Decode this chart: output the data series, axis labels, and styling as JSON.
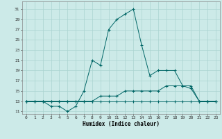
{
  "title": "",
  "xlabel": "Humidex (Indice chaleur)",
  "bg_color": "#cceae8",
  "grid_color": "#aad4d0",
  "line_color": "#006666",
  "xlim": [
    -0.5,
    23.5
  ],
  "ylim": [
    10.5,
    32.5
  ],
  "yticks": [
    11,
    13,
    15,
    17,
    19,
    21,
    23,
    25,
    27,
    29,
    31
  ],
  "xticks": [
    0,
    1,
    2,
    3,
    4,
    5,
    6,
    7,
    8,
    9,
    10,
    11,
    12,
    13,
    14,
    15,
    16,
    17,
    18,
    19,
    20,
    21,
    22,
    23
  ],
  "series": [
    {
      "x": [
        0,
        1,
        2,
        3,
        4,
        5,
        6,
        7,
        8,
        9,
        10,
        11,
        12,
        13,
        14,
        15,
        16,
        17,
        18,
        19,
        20,
        21,
        22,
        23
      ],
      "y": [
        13,
        13,
        13,
        13,
        13,
        13,
        13,
        13,
        13,
        13,
        13,
        13,
        13,
        13,
        13,
        13,
        13,
        13,
        13,
        13,
        13,
        13,
        13,
        13
      ],
      "linestyle": "-"
    },
    {
      "x": [
        0,
        1,
        2,
        3,
        4,
        5,
        6,
        7,
        8,
        9,
        10,
        11,
        12,
        13,
        14,
        15,
        16,
        17,
        18,
        19,
        20,
        21,
        22,
        23
      ],
      "y": [
        13,
        13,
        13,
        13,
        13,
        13,
        13,
        13,
        13,
        14,
        14,
        14,
        15,
        15,
        15,
        15,
        15,
        16,
        16,
        16,
        16,
        13,
        13,
        13
      ],
      "linestyle": "-"
    },
    {
      "x": [
        0,
        1,
        2,
        3,
        4,
        5,
        6,
        7,
        8,
        9,
        10,
        11,
        12,
        13,
        14,
        15,
        16,
        17,
        18,
        19,
        20,
        21,
        22,
        23
      ],
      "y": [
        13,
        13,
        13,
        12,
        12,
        11,
        12,
        15,
        21,
        20,
        27,
        29,
        30,
        31,
        24,
        18,
        19,
        19,
        19,
        16,
        15.5,
        13,
        13,
        13
      ],
      "linestyle": "-"
    }
  ]
}
